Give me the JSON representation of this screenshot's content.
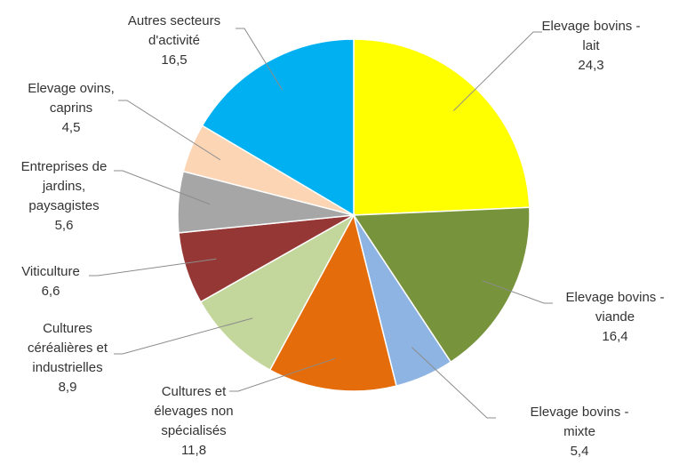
{
  "chart_data": {
    "type": "pie",
    "title": "",
    "start_angle_deg": 0,
    "direction": "clockwise",
    "slices": [
      {
        "label_lines": [
          "Elevage bovins -",
          "lait"
        ],
        "value_text": "24,3",
        "value": 24.3,
        "color": "#ffff00"
      },
      {
        "label_lines": [
          "Elevage bovins -",
          "viande"
        ],
        "value_text": "16,4",
        "value": 16.4,
        "color": "#77933c"
      },
      {
        "label_lines": [
          "Elevage bovins -",
          "mixte"
        ],
        "value_text": "5,4",
        "value": 5.4,
        "color": "#8eb4e3"
      },
      {
        "label_lines": [
          "Cultures et",
          "élevages non",
          "spécialisés"
        ],
        "value_text": "11,8",
        "value": 11.8,
        "color": "#e46c0a"
      },
      {
        "label_lines": [
          "Cultures",
          "céréalières et",
          "industrielles"
        ],
        "value_text": "8,9",
        "value": 8.9,
        "color": "#c3d69b"
      },
      {
        "label_lines": [
          "Viticulture"
        ],
        "value_text": "6,6",
        "value": 6.6,
        "color": "#953735"
      },
      {
        "label_lines": [
          "Entreprises de",
          "jardins,",
          "paysagistes"
        ],
        "value_text": "5,6",
        "value": 5.6,
        "color": "#a6a6a6"
      },
      {
        "label_lines": [
          "Elevage ovins,",
          "caprins"
        ],
        "value_text": "4,5",
        "value": 4.5,
        "color": "#fcd5b5"
      },
      {
        "label_lines": [
          "Autres secteurs",
          "d'activité"
        ],
        "value_text": "16,5",
        "value": 16.5,
        "color": "#00b0f0"
      }
    ]
  }
}
